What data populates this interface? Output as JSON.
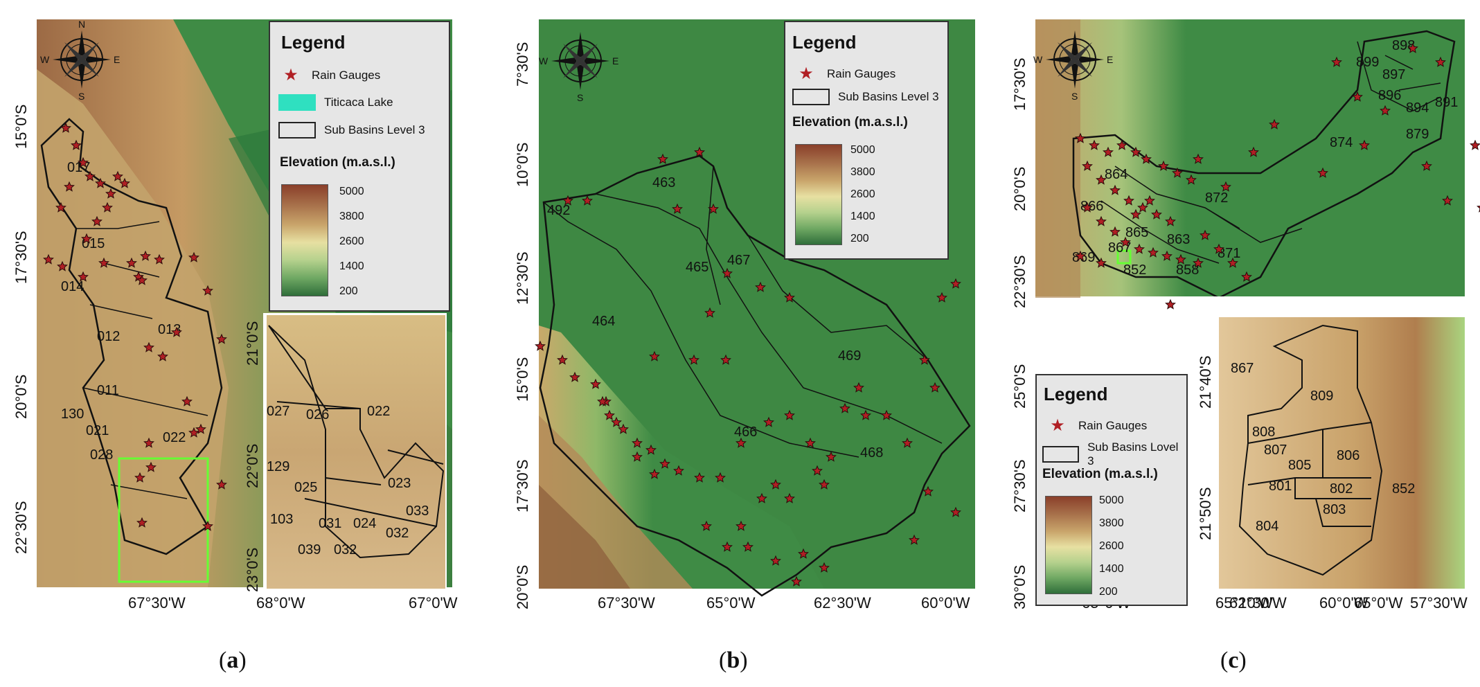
{
  "panels": {
    "a": {
      "caption": "a",
      "lat_labels": [
        "15°0'S",
        "17°30'S",
        "20°0'S",
        "22°30'S"
      ],
      "lon_labels": [
        "67°30'W"
      ],
      "subbasins": [
        "017",
        "015",
        "014",
        "012",
        "013",
        "011",
        "130",
        "021",
        "028",
        "022"
      ],
      "inset": {
        "lat_labels": [
          "21°0'S",
          "22°0'S",
          "23°0'S"
        ],
        "lon_labels": [
          "68°0'W",
          "67°0'W"
        ],
        "subbasins": [
          "027",
          "026",
          "022",
          "129",
          "025",
          "023",
          "033",
          "103",
          "031",
          "024",
          "032",
          "039",
          "032"
        ]
      },
      "legend": {
        "title": "Legend",
        "rain": "Rain Gauges",
        "lake": "Titicaca Lake",
        "basins": "Sub Basins Level 3",
        "elev_title": "Elevation (m.a.s.l.)",
        "ticks": [
          "5000",
          "3800",
          "2600",
          "1400",
          "200"
        ]
      }
    },
    "b": {
      "caption": "b",
      "lat_labels": [
        "7°30'S",
        "10°0'S",
        "12°30'S",
        "15°0'S",
        "17°30'S",
        "20°0'S"
      ],
      "lon_labels": [
        "67°30'W",
        "65°0'W",
        "62°30'W",
        "60°0'W"
      ],
      "subbasins": [
        "463",
        "492",
        "465",
        "467",
        "464",
        "469",
        "466",
        "468"
      ],
      "legend": {
        "title": "Legend",
        "rain": "Rain Gauges",
        "basins": "Sub Basins Level 3",
        "elev_title": "Elevation (m.a.s.l.)",
        "ticks": [
          "5000",
          "3800",
          "2600",
          "1400",
          "200"
        ]
      }
    },
    "c": {
      "caption": "c",
      "lat_labels": [
        "17°30'S",
        "20°0'S",
        "22°30'S",
        "25°0'S",
        "27°30'S",
        "30°0'S"
      ],
      "lon_labels": [
        "65°0'W",
        "62°30'W",
        "60°0'W",
        "57°30'W"
      ],
      "subbasins": [
        "898",
        "899",
        "897",
        "896",
        "894",
        "891",
        "879",
        "874",
        "864",
        "866",
        "872",
        "865",
        "863",
        "867",
        "871",
        "869",
        "852",
        "858"
      ],
      "inset": {
        "lat_labels": [
          "21°40'S",
          "21°50'S"
        ],
        "lon_labels": [
          "65°10'W",
          "65°0'W"
        ],
        "subbasins": [
          "867",
          "809",
          "808",
          "807",
          "806",
          "805",
          "801",
          "802",
          "852",
          "803",
          "804"
        ]
      },
      "legend": {
        "title": "Legend",
        "rain": "Rain Gauges",
        "basins": "Sub Basins Lovel 3",
        "elev_title": "Elevation (m.a.s.l.)",
        "ticks": [
          "5000",
          "3800",
          "2600",
          "1400",
          "200"
        ]
      }
    }
  },
  "colors": {
    "star": "#b01f24",
    "lake": "#2fe0c0",
    "highlight": "#66ff33"
  }
}
